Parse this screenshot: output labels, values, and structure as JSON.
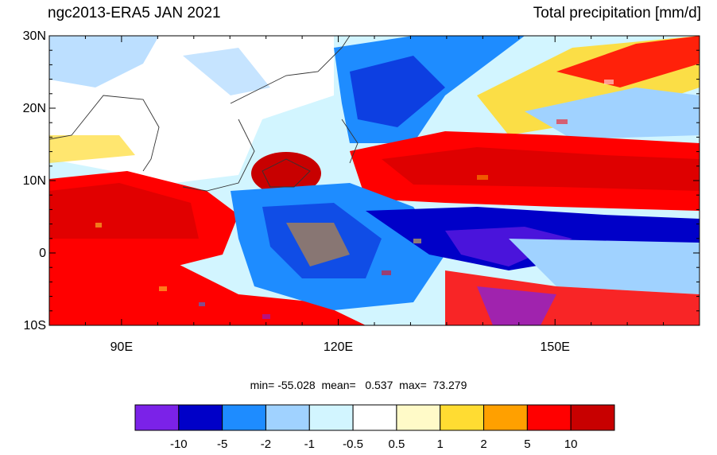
{
  "title_left": "ngc2013-ERA5 JAN 2021",
  "title_right": "Total precipitation [mm/d]",
  "stats": {
    "min": "-55.028",
    "mean": "0.537",
    "max": "73.279"
  },
  "stats_text": "min= -55.028  mean=   0.537  max=  73.279",
  "map": {
    "lon_range": [
      80,
      170
    ],
    "lat_range": [
      -10,
      30
    ],
    "lat_ticks": [
      {
        "value": 30,
        "label": "30N"
      },
      {
        "value": 20,
        "label": "20N"
      },
      {
        "value": 10,
        "label": "10N"
      },
      {
        "value": 0,
        "label": "0"
      },
      {
        "value": -10,
        "label": "10S"
      }
    ],
    "lon_ticks": [
      {
        "value": 90,
        "label": "90E"
      },
      {
        "value": 120,
        "label": "120E"
      },
      {
        "value": 150,
        "label": "150E"
      }
    ]
  },
  "colorbar": {
    "colors": [
      "#7b22e8",
      "#0000c8",
      "#1e8cff",
      "#a0d2ff",
      "#d2f5ff",
      "#ffffff",
      "#fffac8",
      "#ffdc32",
      "#ffa000",
      "#ff0000",
      "#c80000"
    ],
    "labels": [
      "-10",
      "-5",
      "-2",
      "-1",
      "-0.5",
      "0.5",
      "1",
      "2",
      "5",
      "10"
    ]
  }
}
